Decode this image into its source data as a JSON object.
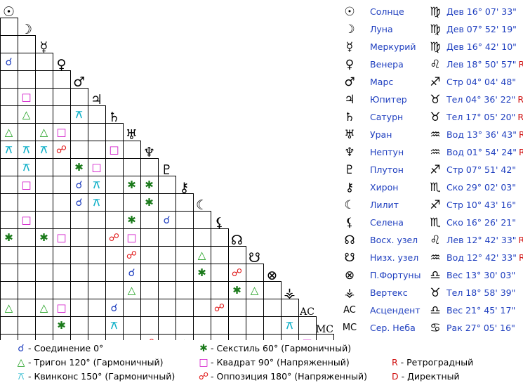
{
  "chart_data": {
    "type": "table",
    "grid_symbols": [
      "☉",
      "☽",
      "☿",
      "♀",
      "♂",
      "♃",
      "♄",
      "♅",
      "♆",
      "♇",
      "⚷",
      "☾",
      "⚸",
      "☊",
      "☋",
      "⊗",
      "⚶",
      "AC",
      "MC"
    ],
    "aspects": [
      {
        "row": 2,
        "col": 0,
        "aspect": "conjunction"
      },
      {
        "row": 4,
        "col": 1,
        "aspect": "square"
      },
      {
        "row": 5,
        "col": 1,
        "aspect": "trine"
      },
      {
        "row": 5,
        "col": 4,
        "aspect": "quincunx"
      },
      {
        "row": 6,
        "col": 0,
        "aspect": "trine"
      },
      {
        "row": 6,
        "col": 2,
        "aspect": "trine"
      },
      {
        "row": 6,
        "col": 3,
        "aspect": "square"
      },
      {
        "row": 7,
        "col": 0,
        "aspect": "quincunx"
      },
      {
        "row": 7,
        "col": 1,
        "aspect": "quincunx"
      },
      {
        "row": 7,
        "col": 2,
        "aspect": "quincunx"
      },
      {
        "row": 7,
        "col": 3,
        "aspect": "opposition"
      },
      {
        "row": 7,
        "col": 6,
        "aspect": "square"
      },
      {
        "row": 8,
        "col": 1,
        "aspect": "quincunx"
      },
      {
        "row": 8,
        "col": 4,
        "aspect": "sextile"
      },
      {
        "row": 8,
        "col": 5,
        "aspect": "square"
      },
      {
        "row": 9,
        "col": 1,
        "aspect": "square"
      },
      {
        "row": 9,
        "col": 4,
        "aspect": "conjunction"
      },
      {
        "row": 9,
        "col": 5,
        "aspect": "quincunx"
      },
      {
        "row": 9,
        "col": 7,
        "aspect": "sextile"
      },
      {
        "row": 9,
        "col": 8,
        "aspect": "sextile"
      },
      {
        "row": 10,
        "col": 4,
        "aspect": "conjunction"
      },
      {
        "row": 10,
        "col": 5,
        "aspect": "quincunx"
      },
      {
        "row": 10,
        "col": 8,
        "aspect": "sextile"
      },
      {
        "row": 11,
        "col": 1,
        "aspect": "square"
      },
      {
        "row": 11,
        "col": 7,
        "aspect": "sextile"
      },
      {
        "row": 11,
        "col": 9,
        "aspect": "conjunction"
      },
      {
        "row": 12,
        "col": 0,
        "aspect": "sextile"
      },
      {
        "row": 12,
        "col": 2,
        "aspect": "sextile"
      },
      {
        "row": 12,
        "col": 3,
        "aspect": "square"
      },
      {
        "row": 12,
        "col": 6,
        "aspect": "opposition"
      },
      {
        "row": 12,
        "col": 7,
        "aspect": "square"
      },
      {
        "row": 13,
        "col": 7,
        "aspect": "opposition"
      },
      {
        "row": 13,
        "col": 11,
        "aspect": "trine"
      },
      {
        "row": 14,
        "col": 7,
        "aspect": "conjunction"
      },
      {
        "row": 14,
        "col": 11,
        "aspect": "sextile"
      },
      {
        "row": 14,
        "col": 13,
        "aspect": "opposition"
      },
      {
        "row": 15,
        "col": 7,
        "aspect": "trine"
      },
      {
        "row": 15,
        "col": 13,
        "aspect": "sextile"
      },
      {
        "row": 15,
        "col": 14,
        "aspect": "trine"
      },
      {
        "row": 16,
        "col": 0,
        "aspect": "trine"
      },
      {
        "row": 16,
        "col": 2,
        "aspect": "trine"
      },
      {
        "row": 16,
        "col": 3,
        "aspect": "square"
      },
      {
        "row": 16,
        "col": 6,
        "aspect": "conjunction"
      },
      {
        "row": 16,
        "col": 12,
        "aspect": "opposition"
      },
      {
        "row": 17,
        "col": 3,
        "aspect": "sextile"
      },
      {
        "row": 17,
        "col": 6,
        "aspect": "quincunx"
      },
      {
        "row": 17,
        "col": 16,
        "aspect": "quincunx"
      },
      {
        "row": 18,
        "col": 8,
        "aspect": "opposition"
      },
      {
        "row": 18,
        "col": 10,
        "aspect": "trine"
      },
      {
        "row": 18,
        "col": 17,
        "aspect": "square"
      }
    ],
    "aspect_styles": {
      "conjunction": {
        "glyph": "☌",
        "color": "#1f3fbf"
      },
      "trine": {
        "glyph": "△",
        "color": "#1f9f1f"
      },
      "quincunx": {
        "glyph": "⚻",
        "color": "#10b0c8"
      },
      "sextile": {
        "glyph": "✱",
        "color": "#1a7a1a"
      },
      "square": {
        "glyph": "□",
        "color": "#d010c8"
      },
      "opposition": {
        "glyph": "☍",
        "color": "#e01818"
      }
    },
    "planets": [
      {
        "symbol": "☉",
        "name": "Солнце",
        "zodiac": "♍",
        "position": "Дев 16° 07' 33\"",
        "retro": ""
      },
      {
        "symbol": "☽",
        "name": "Луна",
        "zodiac": "♍",
        "position": "Дев 07° 52' 19\"",
        "retro": ""
      },
      {
        "symbol": "☿",
        "name": "Меркурий",
        "zodiac": "♍",
        "position": "Дев 16° 42' 10\"",
        "retro": ""
      },
      {
        "symbol": "♀",
        "name": "Венера",
        "zodiac": "♌",
        "position": "Лев 18° 50' 57\"",
        "retro": "R"
      },
      {
        "symbol": "♂",
        "name": "Марс",
        "zodiac": "♐",
        "position": "Стр 04° 04' 48\"",
        "retro": ""
      },
      {
        "symbol": "♃",
        "name": "Юпитер",
        "zodiac": "♉",
        "position": "Тел 04° 36' 22\"",
        "retro": "R"
      },
      {
        "symbol": "♄",
        "name": "Сатурн",
        "zodiac": "♉",
        "position": "Тел 17° 05' 20\"",
        "retro": "R"
      },
      {
        "symbol": "♅",
        "name": "Уран",
        "zodiac": "♒",
        "position": "Вод 13° 36' 43\"",
        "retro": "R"
      },
      {
        "symbol": "♆",
        "name": "Нептун",
        "zodiac": "♒",
        "position": "Вод 01° 54' 24\"",
        "retro": "R"
      },
      {
        "symbol": "♇",
        "name": "Плутон",
        "zodiac": "♐",
        "position": "Стр 07° 51' 42\"",
        "retro": ""
      },
      {
        "symbol": "⚷",
        "name": "Хирон",
        "zodiac": "♏",
        "position": "Ско 29° 02' 03\"",
        "retro": ""
      },
      {
        "symbol": "☾",
        "name": "Лилит",
        "zodiac": "♐",
        "position": "Стр 10° 43' 16\"",
        "retro": ""
      },
      {
        "symbol": "⚸",
        "name": "Селена",
        "zodiac": "♏",
        "position": "Ско 16° 26' 21\"",
        "retro": ""
      },
      {
        "symbol": "☊",
        "name": "Восх. узел",
        "zodiac": "♌",
        "position": "Лев 12° 42' 33\"",
        "retro": "R"
      },
      {
        "symbol": "☋",
        "name": "Низх. узел",
        "zodiac": "♒",
        "position": "Вод 12° 42' 33\"",
        "retro": "R"
      },
      {
        "symbol": "⊗",
        "name": "П.Фортуны",
        "zodiac": "♎",
        "position": "Вес 13° 30' 03\"",
        "retro": ""
      },
      {
        "symbol": "⚶",
        "name": "Вертекс",
        "zodiac": "♉",
        "position": "Тел 18° 58' 39\"",
        "retro": ""
      },
      {
        "symbol": "AC",
        "name": "Асцендент",
        "zodiac": "♎",
        "position": "Вес 21° 45' 17\"",
        "retro": ""
      },
      {
        "symbol": "MC",
        "name": "Сер. Неба",
        "zodiac": "♋",
        "position": "Рак 27° 05' 16\"",
        "retro": ""
      }
    ]
  },
  "legend": {
    "conjunction": "- Соединение 0°",
    "trine": "- Тригон 120° (Гармоничный)",
    "quincunx": "- Квинконс 150° (Гармоничный)",
    "sextile": "- Секстиль 60° (Гармоничный)",
    "square": "- Квадрат 90° (Напряженный)",
    "opposition": "- Оппозиция 180° (Напряженный)",
    "retro_key": "R",
    "retro_label": " - Ретроградный",
    "direct_key": "D",
    "direct_label": " - Директный"
  }
}
